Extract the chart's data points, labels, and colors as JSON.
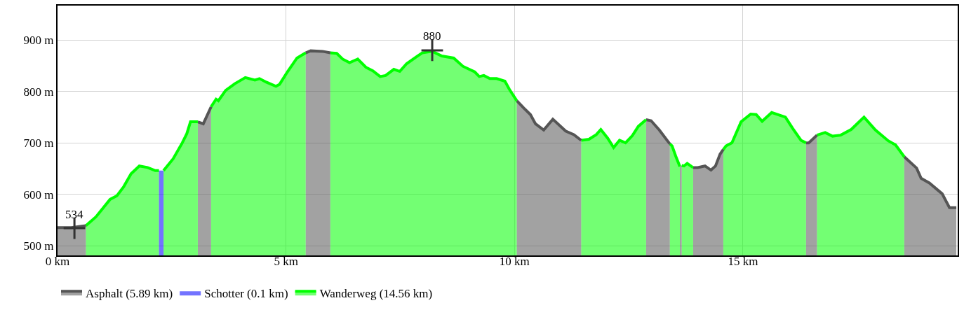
{
  "chart_data": {
    "type": "area",
    "xlim": [
      0,
      19.7
    ],
    "ylim": [
      481,
      967
    ],
    "xticks": [
      {
        "value": 0,
        "label": "0 km"
      },
      {
        "value": 5,
        "label": "5 km"
      },
      {
        "value": 10,
        "label": "10 km"
      },
      {
        "value": 15,
        "label": "15 km"
      }
    ],
    "yticks": [
      {
        "value": 500,
        "label": "500 m"
      },
      {
        "value": 600,
        "label": "600 m"
      },
      {
        "value": 700,
        "label": "700 m"
      },
      {
        "value": 800,
        "label": "800 m"
      },
      {
        "value": 900,
        "label": "900 m"
      }
    ],
    "grid": true,
    "legend": "bottom left",
    "series": [
      {
        "name": "Asphalt (5.89 km)",
        "color": "#555555",
        "x": [
          0,
          0.3,
          0.62
        ],
        "values": [
          535,
          535,
          539
        ]
      },
      {
        "name": "Schotter (0.1 km)",
        "color": "#0000ff",
        "x": [
          2.22,
          2.27,
          2.32
        ],
        "values": [
          646,
          646,
          646
        ]
      },
      {
        "name": "Wanderweg (14.56 km)",
        "color": "#00ff00",
        "x": [
          0.62,
          0.84,
          1.15,
          1.3,
          1.45,
          1.61,
          1.79,
          1.97,
          2.14,
          2.22
        ],
        "values": [
          539,
          556,
          590,
          597,
          615,
          640,
          655,
          652,
          646,
          646
        ]
      },
      {
        "color": "#00ff00",
        "x": [
          2.32,
          2.53,
          2.73,
          2.83,
          2.91,
          3.07
        ],
        "values": [
          646,
          669,
          700,
          718,
          741,
          741
        ]
      },
      {
        "color": "#555555",
        "x": [
          3.07,
          3.19,
          3.36
        ],
        "values": [
          741,
          737,
          770
        ]
      },
      {
        "color": "#00ff00",
        "x": [
          3.36,
          3.47,
          3.52,
          3.68,
          3.88,
          4.11,
          4.32,
          4.42,
          4.57,
          4.78,
          4.86,
          5.03,
          5.24,
          5.43
        ],
        "values": [
          770,
          785,
          782,
          802,
          815,
          827,
          822,
          825,
          818,
          810,
          814,
          838,
          865,
          875
        ]
      },
      {
        "color": "#555555",
        "x": [
          5.43,
          5.54,
          5.8,
          5.97
        ],
        "values": [
          875,
          879,
          878,
          875
        ]
      },
      {
        "color": "#00ff00",
        "x": [
          5.97,
          6.11,
          6.24,
          6.39,
          6.57,
          6.75,
          6.9,
          7.06,
          7.18,
          7.36,
          7.49,
          7.64,
          7.85,
          7.98,
          8.2,
          8.41,
          8.67,
          8.87,
          9.13,
          9.23,
          9.33,
          9.46,
          9.61,
          9.79,
          9.89,
          10.05
        ],
        "values": [
          875,
          874,
          863,
          856,
          863,
          847,
          840,
          829,
          831,
          843,
          839,
          854,
          867,
          875,
          878,
          869,
          865,
          849,
          838,
          829,
          831,
          825,
          825,
          820,
          804,
          782
        ]
      },
      {
        "color": "#555555",
        "x": [
          10.05,
          10.2,
          10.35,
          10.46,
          10.64,
          10.84,
          11.12,
          11.3,
          11.46
        ],
        "values": [
          782,
          768,
          755,
          737,
          725,
          746,
          723,
          716,
          705
        ]
      },
      {
        "color": "#00ff00",
        "x": [
          11.46,
          11.63,
          11.79,
          11.89,
          12.04,
          12.17,
          12.3,
          12.43,
          12.58,
          12.71,
          12.88
        ],
        "values": [
          705,
          707,
          716,
          726,
          709,
          691,
          705,
          700,
          714,
          732,
          745
        ]
      },
      {
        "color": "#555555",
        "x": [
          12.88,
          12.99,
          13.17,
          13.4
        ],
        "values": [
          745,
          743,
          725,
          698
        ]
      },
      {
        "color": "#00ff00",
        "x": [
          13.4,
          13.45,
          13.53,
          13.62
        ],
        "values": [
          698,
          694,
          674,
          654
        ]
      },
      {
        "color": "#555555",
        "x": [
          13.62,
          13.66
        ],
        "values": [
          654,
          656
        ]
      },
      {
        "color": "#00ff00",
        "x": [
          13.66,
          13.71,
          13.78,
          13.89,
          13.91
        ],
        "values": [
          656,
          655,
          660,
          653,
          652
        ]
      },
      {
        "color": "#555555",
        "x": [
          13.91,
          14.01,
          14.17,
          14.3,
          14.4,
          14.5,
          14.57
        ],
        "values": [
          652,
          652,
          655,
          647,
          655,
          678,
          687
        ]
      },
      {
        "color": "#00ff00",
        "x": [
          14.57,
          14.63,
          14.76,
          14.96,
          15.17,
          15.29,
          15.42,
          15.63,
          15.93,
          16.09,
          16.27,
          16.38
        ],
        "values": [
          687,
          694,
          700,
          741,
          756,
          755,
          742,
          759,
          750,
          728,
          705,
          700
        ]
      },
      {
        "color": "#555555",
        "x": [
          16.38,
          16.44,
          16.62
        ],
        "values": [
          700,
          700,
          715
        ]
      },
      {
        "color": "#00ff00",
        "x": [
          16.62,
          16.8,
          16.96,
          17.14,
          17.37,
          17.65,
          17.9,
          18.18,
          18.34,
          18.53
        ],
        "values": [
          715,
          720,
          713,
          715,
          726,
          750,
          725,
          704,
          696,
          673
        ]
      },
      {
        "color": "#555555",
        "x": [
          18.53,
          18.8,
          18.9,
          19.08,
          19.36,
          19.52,
          19.67
        ],
        "values": [
          673,
          651,
          631,
          622,
          601,
          574,
          574
        ]
      }
    ],
    "annotations": [
      {
        "text": "534",
        "x": 0.37,
        "y": 534
      },
      {
        "text": "880",
        "x": 8.2,
        "y": 880
      }
    ]
  }
}
